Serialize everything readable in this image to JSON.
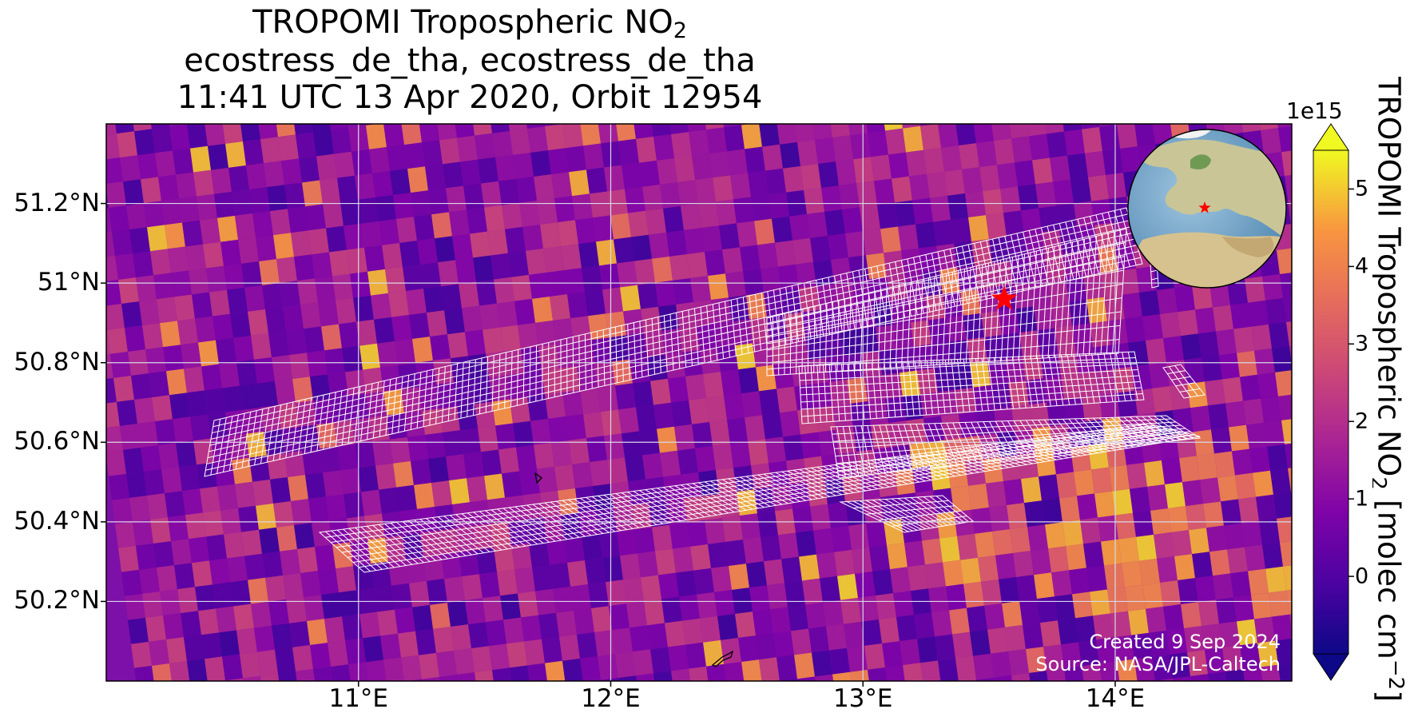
{
  "title": {
    "line1": "TROPOMI Tropospheric NO",
    "line1_sub": "2",
    "line2": "ecostress_de_tha, ecostress_de_tha",
    "line3": "11:41 UTC 13 Apr 2020, Orbit 12954"
  },
  "map": {
    "lon_range": [
      10.0,
      14.7
    ],
    "lat_range": [
      50.0,
      51.4
    ],
    "lon_ticks": [
      {
        "value": 11,
        "label": "11°E"
      },
      {
        "value": 12,
        "label": "12°E"
      },
      {
        "value": 13,
        "label": "13°E"
      },
      {
        "value": 14,
        "label": "14°E"
      }
    ],
    "lat_ticks": [
      {
        "value": 50.2,
        "label": "50.2°N"
      },
      {
        "value": 50.4,
        "label": "50.4°N"
      },
      {
        "value": 50.6,
        "label": "50.6°N"
      },
      {
        "value": 50.8,
        "label": "50.8°N"
      },
      {
        "value": 51.0,
        "label": "51°N"
      },
      {
        "value": 51.2,
        "label": "51.2°N"
      }
    ],
    "gridlines": true,
    "target_marker": {
      "lon": 13.56,
      "lat": 50.96,
      "symbol": "star",
      "color": "#ff0000"
    },
    "inset": "globe-europe",
    "overlay": "ecostress-scene-footprints"
  },
  "credit": {
    "created": "Created 9 Sep 2024",
    "source": "Source: NASA/JPL-Caltech"
  },
  "colorbar": {
    "colormap": "plasma",
    "vmin": -1,
    "vmax": 5.5,
    "extend": "both",
    "exponent": "1e15",
    "ticks": [
      {
        "value": 0,
        "label": "0"
      },
      {
        "value": 1,
        "label": "1"
      },
      {
        "value": 2,
        "label": "2"
      },
      {
        "value": 3,
        "label": "3"
      },
      {
        "value": 4,
        "label": "4"
      },
      {
        "value": 5,
        "label": "5"
      }
    ],
    "label_prefix": "TROPOMI Tropospheric NO",
    "label_sub": "2",
    "label_mid": " [molec cm",
    "label_sup": "−2",
    "label_end": "]"
  }
}
